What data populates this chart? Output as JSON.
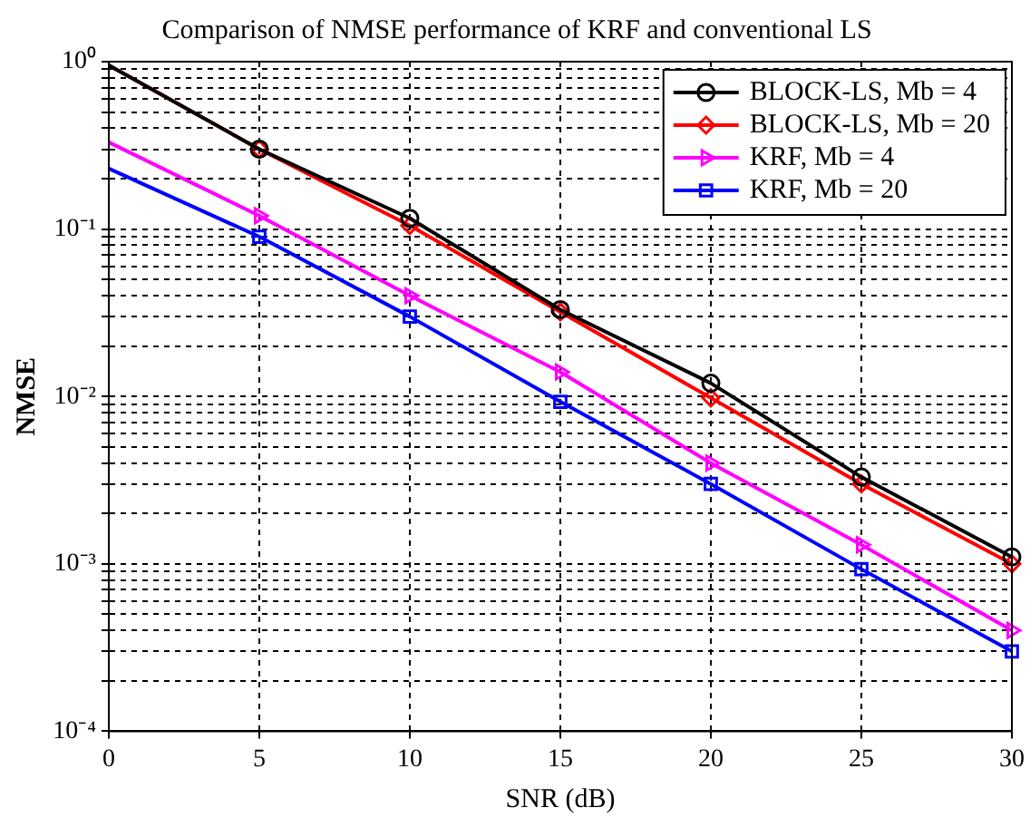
{
  "chart_data": {
    "type": "line",
    "title": "Comparison of NMSE performance of KRF and conventional LS",
    "xlabel": "SNR (dB)",
    "ylabel": "NMSE",
    "x": [
      0,
      5,
      10,
      15,
      20,
      25,
      30
    ],
    "series": [
      {
        "name": "BLOCK-LS, Mb = 4",
        "color": "#000000",
        "marker": "circle",
        "values": [
          0.95,
          0.3,
          0.116,
          0.033,
          0.012,
          0.0033,
          0.0011
        ]
      },
      {
        "name": "BLOCK-LS, Mb = 20",
        "color": "#ff0000",
        "marker": "diamond",
        "values": [
          0.95,
          0.3,
          0.105,
          0.032,
          0.0098,
          0.003,
          0.001
        ]
      },
      {
        "name": "KRF, Mb = 4",
        "color": "#ff00ff",
        "marker": "triangle",
        "values": [
          0.33,
          0.12,
          0.04,
          0.014,
          0.004,
          0.0013,
          0.0004
        ]
      },
      {
        "name": "KRF, Mb = 20",
        "color": "#0000ff",
        "marker": "square",
        "values": [
          0.23,
          0.09,
          0.03,
          0.0093,
          0.003,
          0.00093,
          0.0003
        ]
      }
    ],
    "log": "y",
    "xlim": [
      0,
      30
    ],
    "xticks": [
      0,
      5,
      10,
      15,
      20,
      25,
      30
    ],
    "ylim": [
      0.0001,
      1
    ],
    "yticks": [
      {
        "value": 0.0001,
        "label": "10⁻⁴"
      },
      {
        "value": 0.0002,
        "label": null
      },
      {
        "value": 0.0003,
        "label": null
      },
      {
        "value": 0.0004,
        "label": null
      },
      {
        "value": 0.0005,
        "label": null
      },
      {
        "value": 0.0006,
        "label": null
      },
      {
        "value": 0.0007,
        "label": null
      },
      {
        "value": 0.0008,
        "label": null
      },
      {
        "value": 0.0009,
        "label": null
      },
      {
        "value": 0.001,
        "label": "10⁻³"
      },
      {
        "value": 0.002,
        "label": null
      },
      {
        "value": 0.003,
        "label": null
      },
      {
        "value": 0.004,
        "label": null
      },
      {
        "value": 0.005,
        "label": null
      },
      {
        "value": 0.006,
        "label": null
      },
      {
        "value": 0.007,
        "label": null
      },
      {
        "value": 0.008,
        "label": null
      },
      {
        "value": 0.009,
        "label": null
      },
      {
        "value": 0.01,
        "label": "10⁻²"
      },
      {
        "value": 0.02,
        "label": null
      },
      {
        "value": 0.03,
        "label": null
      },
      {
        "value": 0.04,
        "label": null
      },
      {
        "value": 0.05,
        "label": null
      },
      {
        "value": 0.06,
        "label": null
      },
      {
        "value": 0.07,
        "label": null
      },
      {
        "value": 0.08,
        "label": null
      },
      {
        "value": 0.09,
        "label": null
      },
      {
        "value": 0.1,
        "label": "10⁻¹"
      },
      {
        "value": 0.2,
        "label": null
      },
      {
        "value": 0.3,
        "label": null
      },
      {
        "value": 0.4,
        "label": null
      },
      {
        "value": 0.5,
        "label": null
      },
      {
        "value": 0.6,
        "label": null
      },
      {
        "value": 0.7,
        "label": null
      },
      {
        "value": 0.8,
        "label": null
      },
      {
        "value": 0.9,
        "label": null
      },
      {
        "value": 1,
        "label": "10⁰"
      }
    ],
    "grid": true,
    "legend": "top right",
    "line_style": "solid"
  }
}
